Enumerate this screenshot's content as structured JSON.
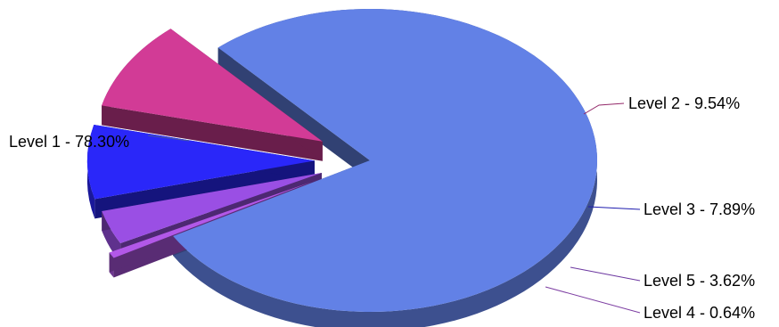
{
  "chart_data": {
    "type": "pie",
    "title": "",
    "legend": "none",
    "categories": [
      "Level 1",
      "Level 2",
      "Level 3",
      "Level 5",
      "Level 4"
    ],
    "values": [
      78.3,
      9.54,
      7.89,
      3.62,
      0.64
    ],
    "unit": "%",
    "labels": [
      "Level 1 - 78.30%",
      "Level 2 - 9.54%",
      "Level 3 - 7.89%",
      "Level 5 - 3.62%",
      "Level 4 - 0.64%"
    ],
    "colors": [
      "#6281e6",
      "#d23b96",
      "#2a27f9",
      "#9a4fe4",
      "#b258e8"
    ],
    "exploded": [
      "Level 2",
      "Level 3",
      "Level 5",
      "Level 4"
    ],
    "style": "3d"
  }
}
